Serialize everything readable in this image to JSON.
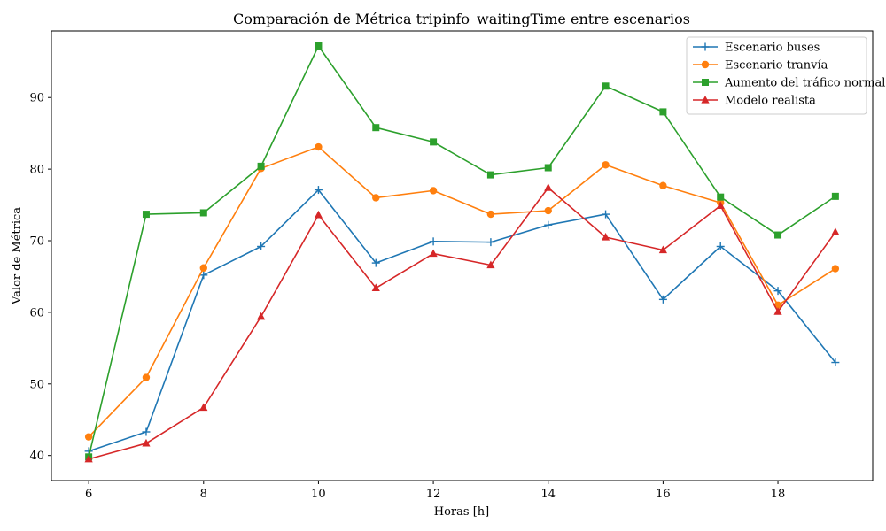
{
  "chart_data": {
    "type": "line",
    "title": "Comparación de Métrica tripinfo_waitingTime entre escenarios",
    "xlabel": "Horas [h]",
    "ylabel": "Valor de Métrica",
    "xlim": [
      5.35,
      19.65
    ],
    "ylim": [
      36.5,
      99.3
    ],
    "xticks": [
      6,
      8,
      10,
      12,
      14,
      16,
      18
    ],
    "yticks": [
      40,
      50,
      60,
      70,
      80,
      90
    ],
    "grid": false,
    "legend_position": "top-right",
    "x": [
      6,
      7,
      8,
      9,
      10,
      11,
      12,
      13,
      14,
      15,
      16,
      17,
      18,
      19
    ],
    "series": [
      {
        "name": "Escenario buses",
        "color": "#1f77b4",
        "marker": "plus",
        "values": [
          40.6,
          43.3,
          65.2,
          69.2,
          77.1,
          66.9,
          69.9,
          69.8,
          72.2,
          73.7,
          61.8,
          69.2,
          63.0,
          53.0
        ]
      },
      {
        "name": "Escenario tranvía",
        "color": "#ff7f0e",
        "marker": "circle",
        "values": [
          42.6,
          50.9,
          66.2,
          80.1,
          83.1,
          76.0,
          77.0,
          73.7,
          74.2,
          80.6,
          77.7,
          75.3,
          61.0,
          66.1
        ]
      },
      {
        "name": "Aumento del tráfico normal",
        "color": "#2ca02c",
        "marker": "square",
        "values": [
          39.8,
          73.7,
          73.9,
          80.4,
          97.2,
          85.8,
          83.8,
          79.2,
          80.2,
          91.6,
          88.0,
          76.1,
          70.8,
          76.2
        ]
      },
      {
        "name": "Modelo realista",
        "color": "#d62728",
        "marker": "triangle",
        "values": [
          39.5,
          41.7,
          46.7,
          59.4,
          73.6,
          63.4,
          68.2,
          66.6,
          77.4,
          70.5,
          68.7,
          74.9,
          60.1,
          71.2
        ]
      }
    ]
  }
}
